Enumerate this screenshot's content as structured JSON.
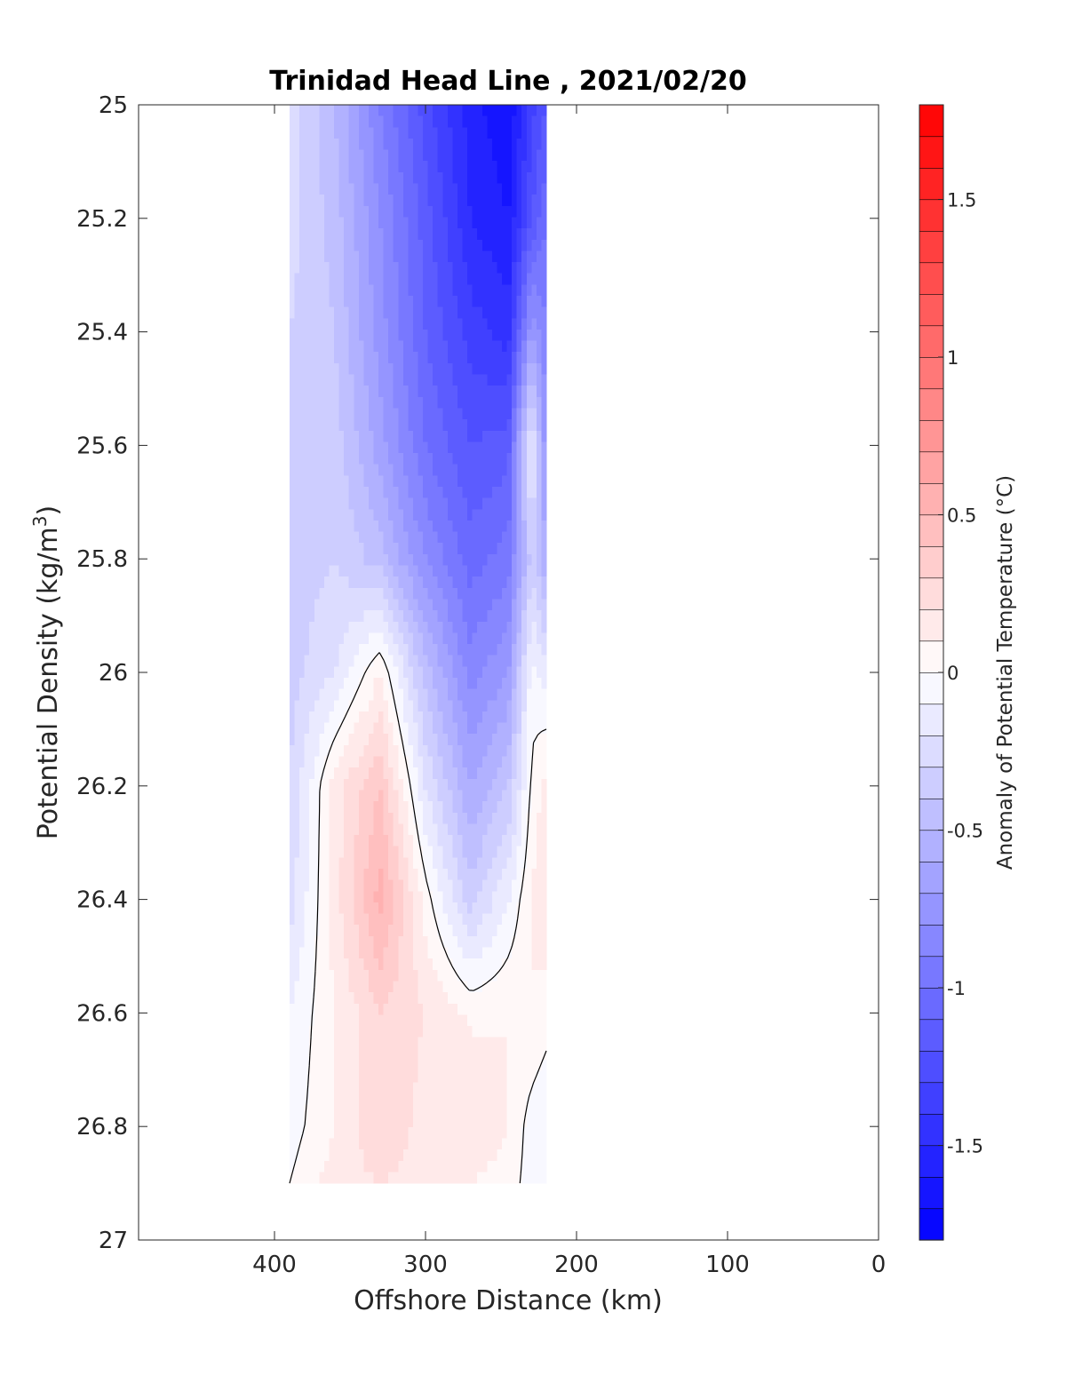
{
  "chart_data": {
    "type": "contour",
    "title": "Trinidad Head Line , 2021/02/20",
    "xlabel": "Offshore Distance (km)",
    "ylabel_main": "Potential Density (kg/m",
    "ylabel_sup": "3",
    "ylabel_close": ")",
    "xlim": [
      490,
      0
    ],
    "ylim": [
      25,
      27
    ],
    "x_reversed": true,
    "y_reversed": true,
    "xticks": [
      400,
      300,
      200,
      100,
      0
    ],
    "yticks": [
      25,
      25.2,
      25.4,
      25.6,
      25.8,
      26,
      26.2,
      26.4,
      26.6,
      26.8,
      27
    ],
    "ytick_labels": [
      "25",
      "25.2",
      "25.4",
      "25.6",
      "25.8",
      "26",
      "26.2",
      "26.4",
      "26.6",
      "26.8",
      "27"
    ],
    "colorbar": {
      "label": "Anomaly of Potential Temperature (°C)",
      "range": [
        -1.8,
        1.8
      ],
      "step": 0.1,
      "ticks": [
        -1.5,
        -1,
        -0.5,
        0,
        0.5,
        1,
        1.5
      ],
      "tick_labels": [
        "-1.5",
        "-1",
        "-0.5",
        "0",
        "0.5",
        "1",
        "1.5"
      ],
      "colormap": "blue-white-red",
      "low_color": "#0000ff",
      "high_color": "#ff0000"
    },
    "grid": false,
    "stations_x": [
      390,
      360,
      330,
      300,
      270,
      245,
      230,
      220
    ],
    "density_levels": [
      25.0,
      25.2,
      25.4,
      25.6,
      25.8,
      26.0,
      26.2,
      26.4,
      26.6,
      26.8,
      26.9
    ],
    "anomaly_grid": [
      [
        -0.25,
        -0.5,
        -0.9,
        -1.25,
        -1.55,
        -1.7,
        -1.35,
        -1.2
      ],
      [
        -0.25,
        -0.45,
        -0.8,
        -1.15,
        -1.5,
        -1.6,
        -1.2,
        -1.0
      ],
      [
        -0.3,
        -0.4,
        -0.75,
        -1.1,
        -1.35,
        -1.45,
        -0.7,
        -0.9
      ],
      [
        -0.3,
        -0.35,
        -0.65,
        -1.0,
        -1.2,
        -1.15,
        -0.1,
        -0.8
      ],
      [
        -0.35,
        -0.3,
        -0.45,
        -0.8,
        -1.05,
        -0.95,
        -0.35,
        -0.6
      ],
      [
        -0.35,
        -0.2,
        0.1,
        -0.45,
        -0.85,
        -0.7,
        -0.05,
        -0.15
      ],
      [
        -0.3,
        0.15,
        0.4,
        -0.2,
        -0.6,
        -0.4,
        0.02,
        0.15
      ],
      [
        -0.25,
        0.15,
        0.55,
        0.05,
        -0.35,
        -0.1,
        0.1,
        0.2
      ],
      [
        -0.1,
        0.1,
        0.3,
        0.2,
        0.08,
        0.1,
        0.1,
        0.05
      ],
      [
        -0.05,
        0.1,
        0.3,
        0.15,
        0.2,
        0.1,
        -0.05,
        -0.1
      ],
      [
        0.0,
        0.15,
        0.2,
        0.15,
        0.1,
        0.05,
        -0.05,
        -0.1
      ]
    ],
    "contour_level": 0
  }
}
